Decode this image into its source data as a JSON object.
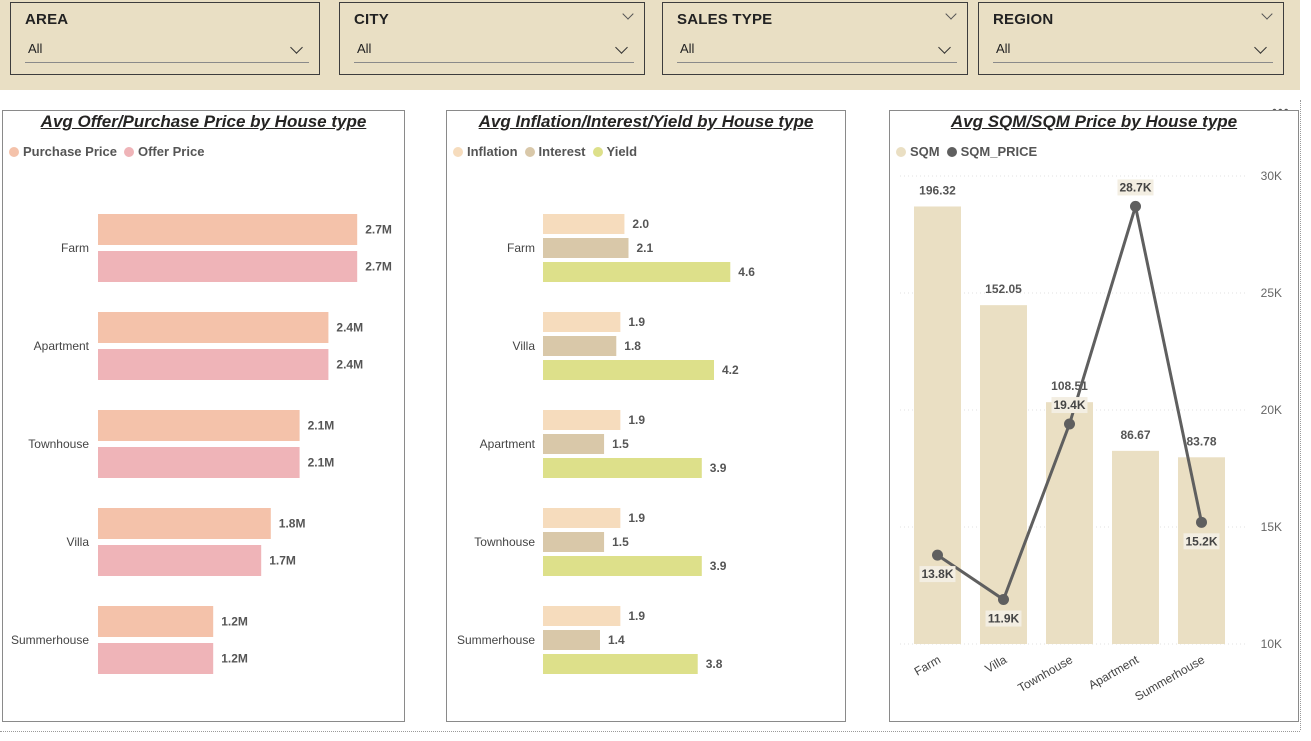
{
  "filters": [
    {
      "title": "AREA",
      "value": "All",
      "header_chevron": false
    },
    {
      "title": "CITY",
      "value": "All",
      "header_chevron": true
    },
    {
      "title": "SALES TYPE",
      "value": "All",
      "header_chevron": true
    },
    {
      "title": "REGION",
      "value": "All",
      "header_chevron": true
    }
  ],
  "menu_icon": "more-options-icon",
  "colors": {
    "filter_bg": "#e9dfc4",
    "purchase": "#f4c2aa",
    "offer": "#efb4b8",
    "inflation": "#f6dcbd",
    "interest": "#d9c8a9",
    "yield": "#dde08a",
    "sqm": "#eadfc3",
    "sqm_price": "#5f5f5f"
  },
  "chart_data": [
    {
      "type": "bar",
      "orientation": "horizontal",
      "title": "Avg Offer/Purchase Price by House type",
      "categories": [
        "Farm",
        "Apartment",
        "Townhouse",
        "Villa",
        "Summerhouse"
      ],
      "series": [
        {
          "name": "Purchase Price",
          "values": [
            2.7,
            2.4,
            2.1,
            1.8,
            1.2
          ],
          "labels": [
            "2.7M",
            "2.4M",
            "2.1M",
            "1.8M",
            "1.2M"
          ]
        },
        {
          "name": "Offer Price",
          "values": [
            2.7,
            2.4,
            2.1,
            1.7,
            1.2
          ],
          "labels": [
            "2.7M",
            "2.4M",
            "2.1M",
            "1.7M",
            "1.2M"
          ]
        }
      ],
      "unit": "M",
      "xlim": [
        0,
        3.0
      ],
      "legend": "top-left",
      "grid": false
    },
    {
      "type": "bar",
      "orientation": "horizontal",
      "title": "Avg Inflation/Interest/Yield by House type",
      "categories": [
        "Farm",
        "Villa",
        "Apartment",
        "Townhouse",
        "Summerhouse"
      ],
      "series": [
        {
          "name": "Inflation",
          "values": [
            2.0,
            1.9,
            1.9,
            1.9,
            1.9
          ],
          "labels": [
            "2.0",
            "1.9",
            "1.9",
            "1.9",
            "1.9"
          ]
        },
        {
          "name": "Interest",
          "values": [
            2.1,
            1.8,
            1.5,
            1.5,
            1.4
          ],
          "labels": [
            "2.1",
            "1.8",
            "1.5",
            "1.5",
            "1.4"
          ]
        },
        {
          "name": "Yield",
          "values": [
            4.6,
            4.2,
            3.9,
            3.9,
            3.8
          ],
          "labels": [
            "4.6",
            "4.2",
            "3.9",
            "3.9",
            "3.8"
          ]
        }
      ],
      "xlim": [
        0,
        7.0
      ],
      "legend": "top-left",
      "grid": false
    },
    {
      "type": "bar",
      "combo": "bar+line",
      "title": "Avg SQM/SQM Price by House type",
      "categories": [
        "Farm",
        "Villa",
        "Townhouse",
        "Apartment",
        "Summerhouse"
      ],
      "series": [
        {
          "name": "SQM",
          "type": "bar",
          "values": [
            196.32,
            152.05,
            108.51,
            86.67,
            83.78
          ],
          "labels": [
            "196.32",
            "152.05",
            "108.51",
            "86.67",
            "83.78"
          ]
        },
        {
          "name": "SQM_PRICE",
          "type": "line",
          "axis": "right",
          "values": [
            13800,
            11900,
            19400,
            28700,
            15200
          ],
          "labels": [
            "13.8K",
            "11.9K",
            "19.4K",
            "28.7K",
            "15.2K"
          ]
        }
      ],
      "left_axis_ylim": [
        0,
        210
      ],
      "right_axis": {
        "ylim": [
          10000,
          30000
        ],
        "ticks": [
          "10K",
          "15K",
          "20K",
          "25K",
          "30K"
        ],
        "tick_values": [
          10000,
          15000,
          20000,
          25000,
          30000
        ]
      },
      "legend": "top-left",
      "grid": true
    }
  ]
}
